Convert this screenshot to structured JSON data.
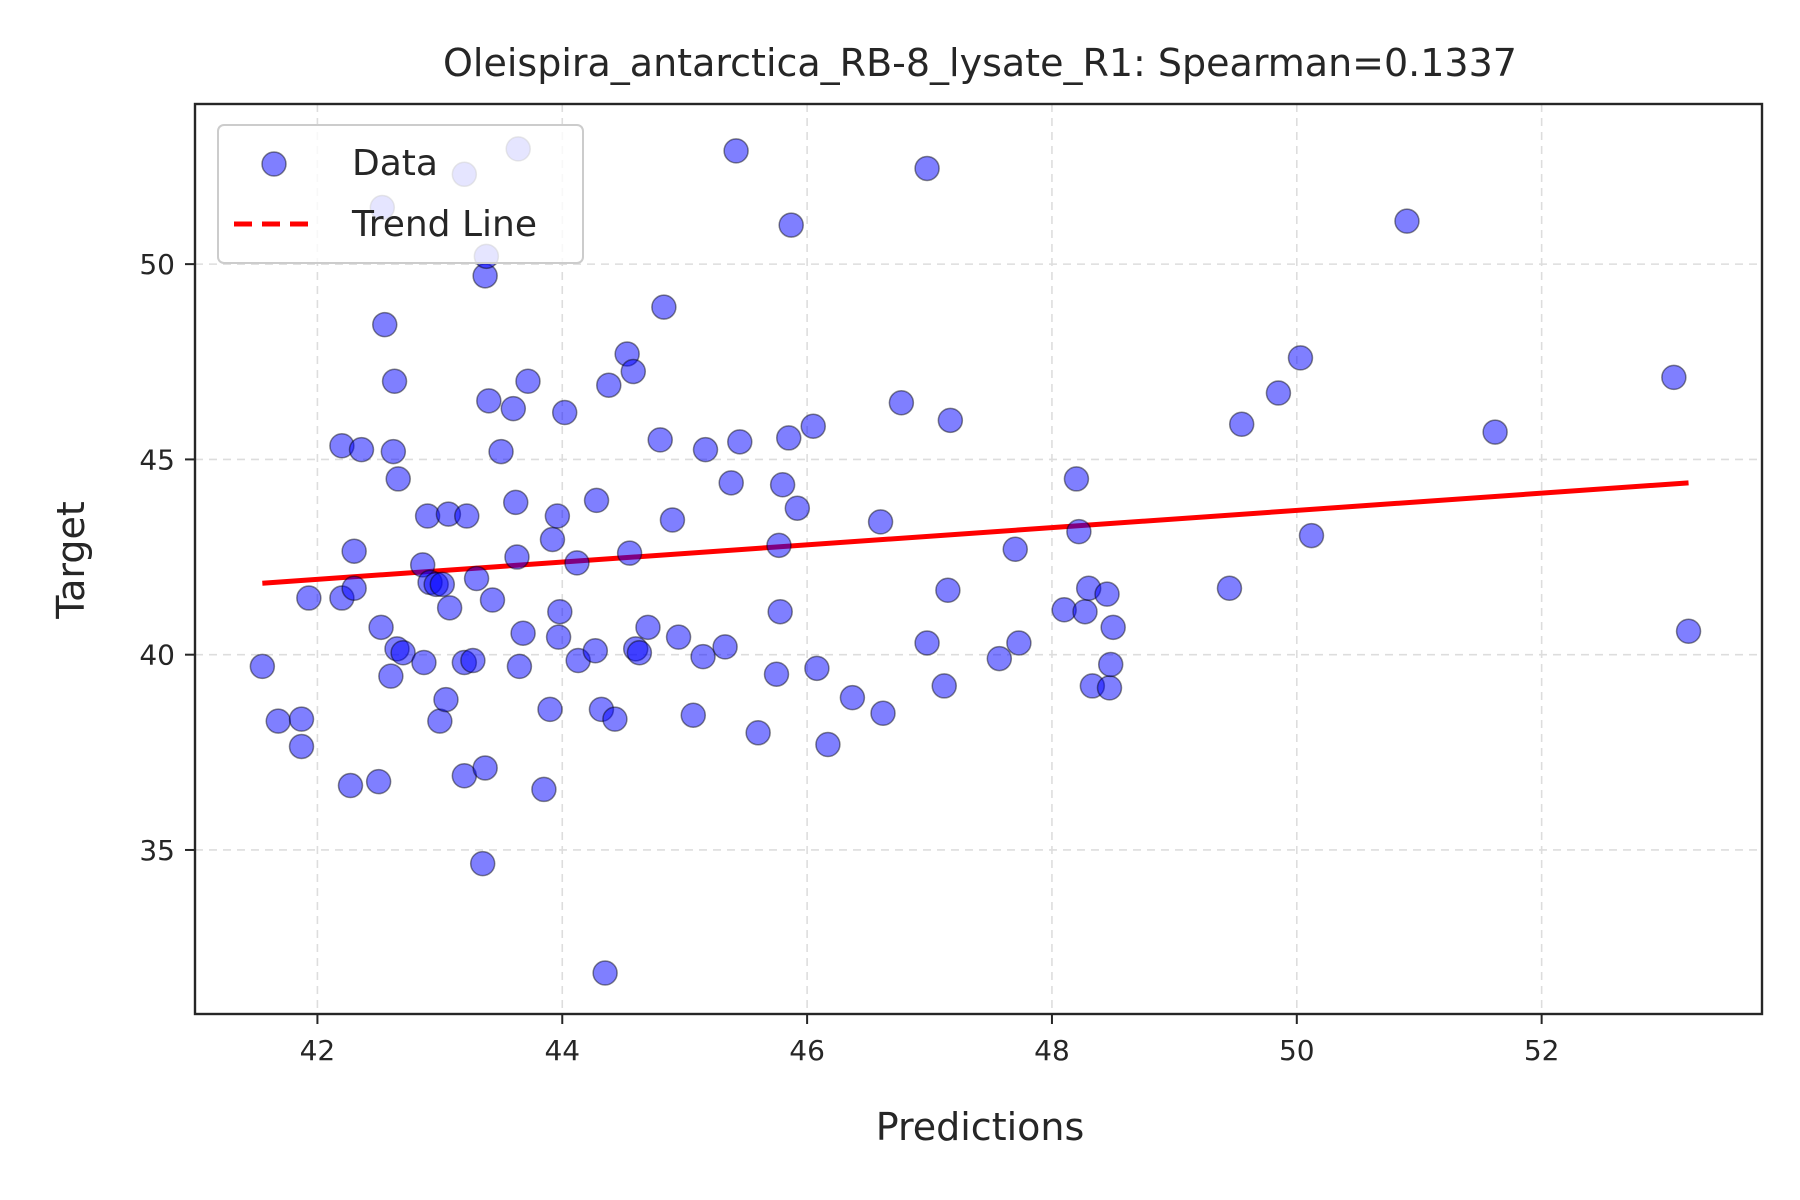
{
  "chart_data": {
    "type": "scatter",
    "title": "Oleispira_antarctica_RB-8_lysate_R1: Spearman=0.1337",
    "xlabel": "Predictions",
    "ylabel": "Target",
    "xlim": [
      41.0,
      53.8
    ],
    "ylim": [
      30.8,
      54.1
    ],
    "xticks": [
      42,
      44,
      46,
      48,
      50,
      52
    ],
    "yticks": [
      35,
      40,
      45,
      50
    ],
    "grid": true,
    "legend_position": "upper-left",
    "colors": {
      "points": "#0000ff",
      "trend": "#ff0000"
    },
    "series": [
      {
        "name": "Data",
        "kind": "scatter",
        "points": [
          [
            41.55,
            39.7
          ],
          [
            41.68,
            38.3
          ],
          [
            41.87,
            38.35
          ],
          [
            41.87,
            37.65
          ],
          [
            41.93,
            41.45
          ],
          [
            42.2,
            45.35
          ],
          [
            42.2,
            41.45
          ],
          [
            42.27,
            36.65
          ],
          [
            42.3,
            42.65
          ],
          [
            42.3,
            41.7
          ],
          [
            42.36,
            45.25
          ],
          [
            42.5,
            36.75
          ],
          [
            42.52,
            40.7
          ],
          [
            42.53,
            51.45
          ],
          [
            42.55,
            48.45
          ],
          [
            42.6,
            39.45
          ],
          [
            42.62,
            45.2
          ],
          [
            42.63,
            47.0
          ],
          [
            42.65,
            40.15
          ],
          [
            42.66,
            44.5
          ],
          [
            42.7,
            40.05
          ],
          [
            42.86,
            42.3
          ],
          [
            42.87,
            39.8
          ],
          [
            42.9,
            43.55
          ],
          [
            42.92,
            41.85
          ],
          [
            42.97,
            41.8
          ],
          [
            43.0,
            38.3
          ],
          [
            43.02,
            41.8
          ],
          [
            43.05,
            38.85
          ],
          [
            43.07,
            43.6
          ],
          [
            43.08,
            41.2
          ],
          [
            43.2,
            52.3
          ],
          [
            43.2,
            39.8
          ],
          [
            43.2,
            36.9
          ],
          [
            43.22,
            43.55
          ],
          [
            43.27,
            39.85
          ],
          [
            43.3,
            41.95
          ],
          [
            43.35,
            34.65
          ],
          [
            43.37,
            37.1
          ],
          [
            43.37,
            49.7
          ],
          [
            43.38,
            50.2
          ],
          [
            43.4,
            46.5
          ],
          [
            43.43,
            41.4
          ],
          [
            43.5,
            45.2
          ],
          [
            43.6,
            46.3
          ],
          [
            43.62,
            43.9
          ],
          [
            43.63,
            42.5
          ],
          [
            43.64,
            52.95
          ],
          [
            43.65,
            39.7
          ],
          [
            43.68,
            40.55
          ],
          [
            43.72,
            47.0
          ],
          [
            43.85,
            36.55
          ],
          [
            43.9,
            38.6
          ],
          [
            43.92,
            42.95
          ],
          [
            43.96,
            43.55
          ],
          [
            43.97,
            40.45
          ],
          [
            43.98,
            41.1
          ],
          [
            44.02,
            46.2
          ],
          [
            44.12,
            42.35
          ],
          [
            44.13,
            39.85
          ],
          [
            44.27,
            40.1
          ],
          [
            44.28,
            43.95
          ],
          [
            44.32,
            38.6
          ],
          [
            44.35,
            31.85
          ],
          [
            44.38,
            46.9
          ],
          [
            44.43,
            38.35
          ],
          [
            44.53,
            47.7
          ],
          [
            44.55,
            42.6
          ],
          [
            44.58,
            47.25
          ],
          [
            44.6,
            40.15
          ],
          [
            44.63,
            40.05
          ],
          [
            44.7,
            40.7
          ],
          [
            44.8,
            45.5
          ],
          [
            44.83,
            48.9
          ],
          [
            44.9,
            43.45
          ],
          [
            44.95,
            40.45
          ],
          [
            45.07,
            38.45
          ],
          [
            45.15,
            39.95
          ],
          [
            45.17,
            45.25
          ],
          [
            45.33,
            40.2
          ],
          [
            45.38,
            44.4
          ],
          [
            45.42,
            52.9
          ],
          [
            45.45,
            45.45
          ],
          [
            45.6,
            38.0
          ],
          [
            45.75,
            39.5
          ],
          [
            45.77,
            42.8
          ],
          [
            45.78,
            41.1
          ],
          [
            45.8,
            44.35
          ],
          [
            45.85,
            45.55
          ],
          [
            45.87,
            51.0
          ],
          [
            45.92,
            43.75
          ],
          [
            46.05,
            45.85
          ],
          [
            46.08,
            39.65
          ],
          [
            46.17,
            37.7
          ],
          [
            46.37,
            38.9
          ],
          [
            46.6,
            43.4
          ],
          [
            46.62,
            38.5
          ],
          [
            46.77,
            46.45
          ],
          [
            46.98,
            52.45
          ],
          [
            46.98,
            40.3
          ],
          [
            47.12,
            39.2
          ],
          [
            47.15,
            41.65
          ],
          [
            47.17,
            46.0
          ],
          [
            47.57,
            39.9
          ],
          [
            47.7,
            42.7
          ],
          [
            47.73,
            40.3
          ],
          [
            48.1,
            41.15
          ],
          [
            48.2,
            44.5
          ],
          [
            48.22,
            43.15
          ],
          [
            48.27,
            41.1
          ],
          [
            48.3,
            41.7
          ],
          [
            48.33,
            39.2
          ],
          [
            48.45,
            41.55
          ],
          [
            48.47,
            39.15
          ],
          [
            48.48,
            39.75
          ],
          [
            48.5,
            40.7
          ],
          [
            49.45,
            41.7
          ],
          [
            49.55,
            45.9
          ],
          [
            49.85,
            46.7
          ],
          [
            50.03,
            47.6
          ],
          [
            50.12,
            43.05
          ],
          [
            50.9,
            51.1
          ],
          [
            51.62,
            45.7
          ],
          [
            53.08,
            47.1
          ],
          [
            53.2,
            40.6
          ]
        ]
      },
      {
        "name": "Trend Line",
        "kind": "line",
        "points": [
          [
            41.55,
            41.83
          ],
          [
            53.2,
            44.4
          ]
        ]
      }
    ]
  }
}
